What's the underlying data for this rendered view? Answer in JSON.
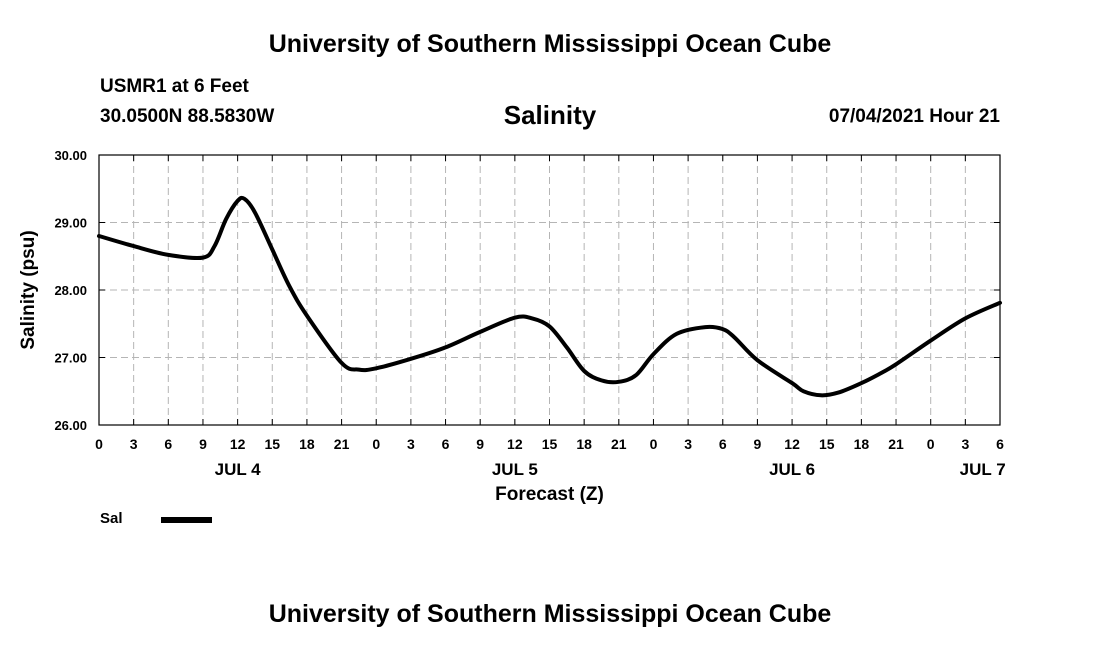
{
  "header": {
    "top_title": "University of Southern Mississippi Ocean Cube",
    "station": "USMR1 at 6 Feet",
    "coords": "30.0500N  88.5830W",
    "datetime": "07/04/2021 Hour 21"
  },
  "footer": {
    "bottom_title": "University of Southern Mississippi Ocean Cube"
  },
  "legend": {
    "label": "Sal"
  },
  "chart_data": {
    "type": "line",
    "title": "Salinity",
    "xlabel": "Forecast (Z)",
    "ylabel": "Salinity (psu)",
    "ylim": [
      26.0,
      30.0
    ],
    "xlim": [
      0,
      78
    ],
    "grid": true,
    "yticks": [
      26.0,
      27.0,
      28.0,
      29.0,
      30.0
    ],
    "ytick_labels": [
      "26.00",
      "27.00",
      "28.00",
      "29.00",
      "30.00"
    ],
    "xtick_hours": [
      0,
      3,
      6,
      9,
      12,
      15,
      18,
      21,
      24,
      27,
      30,
      33,
      36,
      39,
      42,
      45,
      48,
      51,
      54,
      57,
      60,
      63,
      66,
      69,
      72,
      75,
      78
    ],
    "xtick_labels": [
      "0",
      "3",
      "6",
      "9",
      "12",
      "15",
      "18",
      "21",
      "0",
      "3",
      "6",
      "9",
      "12",
      "15",
      "18",
      "21",
      "0",
      "3",
      "6",
      "9",
      "12",
      "15",
      "18",
      "21",
      "0",
      "3",
      "6"
    ],
    "day_labels": [
      {
        "hour": 12,
        "label": "JUL 4"
      },
      {
        "hour": 36,
        "label": "JUL 5"
      },
      {
        "hour": 60,
        "label": "JUL 6"
      },
      {
        "hour": 76.5,
        "label": "JUL 7"
      }
    ],
    "series": [
      {
        "name": "Sal",
        "color": "#000000",
        "x": [
          0,
          3,
          6,
          9,
          10,
          11,
          12,
          12.6,
          13.5,
          15,
          16.5,
          18,
          21,
          22.5,
          24,
          27,
          30,
          33,
          36,
          37.5,
          39,
          40.5,
          42,
          43.5,
          45,
          46.5,
          48,
          50,
          52.5,
          54,
          55,
          57,
          60,
          61,
          62.5,
          64,
          66,
          67.5,
          69,
          72,
          75,
          78
        ],
        "y": [
          28.8,
          28.65,
          28.52,
          28.48,
          28.65,
          29.05,
          29.32,
          29.35,
          29.15,
          28.6,
          28.05,
          27.62,
          26.92,
          26.82,
          26.84,
          26.98,
          27.15,
          27.38,
          27.59,
          27.58,
          27.46,
          27.15,
          26.8,
          26.66,
          26.64,
          26.74,
          27.05,
          27.35,
          27.45,
          27.42,
          27.3,
          26.96,
          26.62,
          26.5,
          26.44,
          26.48,
          26.62,
          26.75,
          26.9,
          27.25,
          27.58,
          27.81
        ]
      }
    ]
  }
}
